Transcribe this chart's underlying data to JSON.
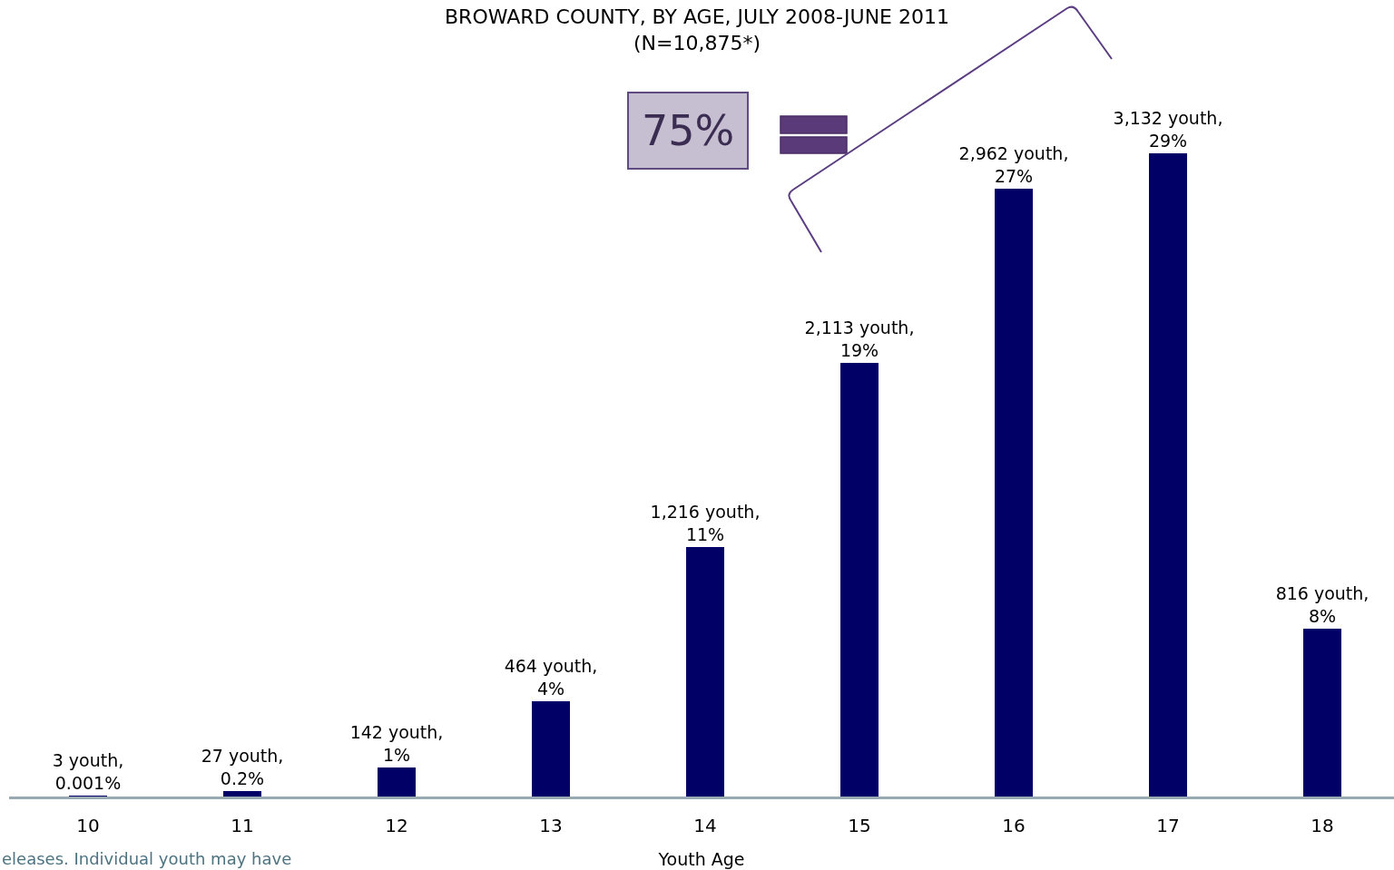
{
  "chart_data": {
    "type": "bar",
    "title": "BROWARD COUNTY, BY AGE, JULY 2008-JUNE 2011\n(N=10,875*)",
    "xlabel": "Youth Age",
    "categories": [
      "10",
      "11",
      "12",
      "13",
      "14",
      "15",
      "16",
      "17",
      "18"
    ],
    "values": [
      3,
      27,
      142,
      464,
      1216,
      2113,
      2962,
      3132,
      816
    ],
    "color": "#000066",
    "value_labels": [
      "3 youth,\n0.001%",
      "27 youth,\n0.2%",
      "142 youth,\n1%",
      "464 youth,\n4%",
      "1,216 youth,\n11%",
      "2,113 youth,\n19%",
      "2,962 youth,\n27%",
      "3,132 youth,\n29%",
      "816 youth,\n8%"
    ],
    "annotations": [
      "75%",
      "eleases. Individual youth may have"
    ]
  }
}
